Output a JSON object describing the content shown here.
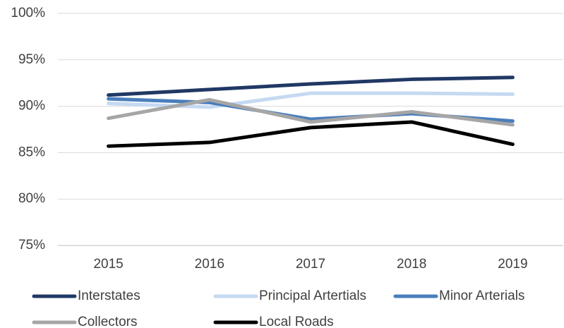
{
  "chart_data": {
    "type": "line",
    "categories": [
      "2015",
      "2016",
      "2017",
      "2018",
      "2019"
    ],
    "series": [
      {
        "name": "Interstates",
        "color": "#203864",
        "values": [
          91.2,
          91.8,
          92.4,
          92.9,
          93.1
        ]
      },
      {
        "name": "Principal Artertials",
        "color": "#c5d9f1",
        "values": [
          90.3,
          89.9,
          91.4,
          91.4,
          91.3
        ]
      },
      {
        "name": "Minor Arterials",
        "color": "#4a7ebb",
        "values": [
          90.8,
          90.4,
          88.6,
          89.2,
          88.4
        ]
      },
      {
        "name": "Collectors",
        "color": "#a6a6a6",
        "values": [
          88.7,
          90.7,
          88.3,
          89.4,
          88.0
        ]
      },
      {
        "name": "Local Roads",
        "color": "#000000",
        "values": [
          85.7,
          86.1,
          87.7,
          88.3,
          85.9
        ]
      }
    ],
    "ylim": [
      75,
      100
    ],
    "yticks": [
      {
        "value": 75,
        "label": "75%"
      },
      {
        "value": 80,
        "label": "80%"
      },
      {
        "value": 85,
        "label": "85%"
      },
      {
        "value": 90,
        "label": "90%"
      },
      {
        "value": 95,
        "label": "95%"
      },
      {
        "value": 100,
        "label": "100%"
      }
    ],
    "grid": true,
    "legend": "bottom"
  }
}
